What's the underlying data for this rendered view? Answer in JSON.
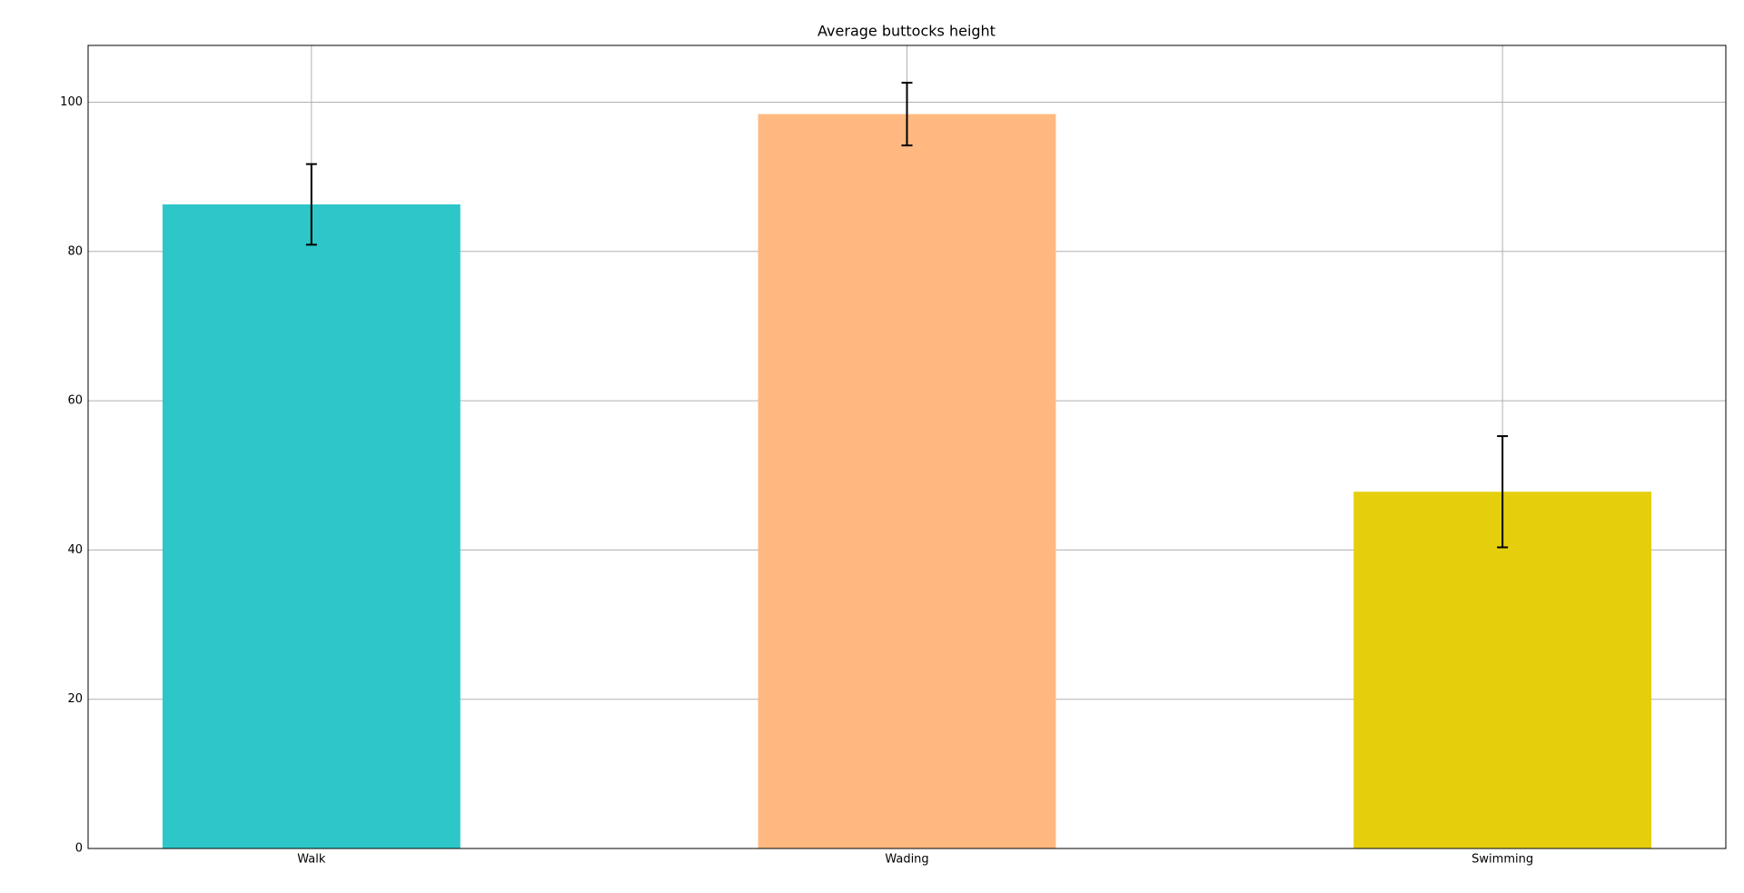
{
  "chart_data": {
    "type": "bar",
    "title": "Average buttocks height",
    "categories": [
      "Walk",
      "Wading",
      "Swimming"
    ],
    "values": [
      86.3,
      98.4,
      47.8
    ],
    "errors": [
      5.4,
      4.2,
      7.45
    ],
    "colors": [
      "#2ec7c9",
      "#ffb980",
      "#e5cf0d"
    ],
    "ylim": [
      0,
      107.6
    ],
    "yticks": [
      0,
      20,
      40,
      60,
      80,
      100
    ],
    "grid": true
  }
}
